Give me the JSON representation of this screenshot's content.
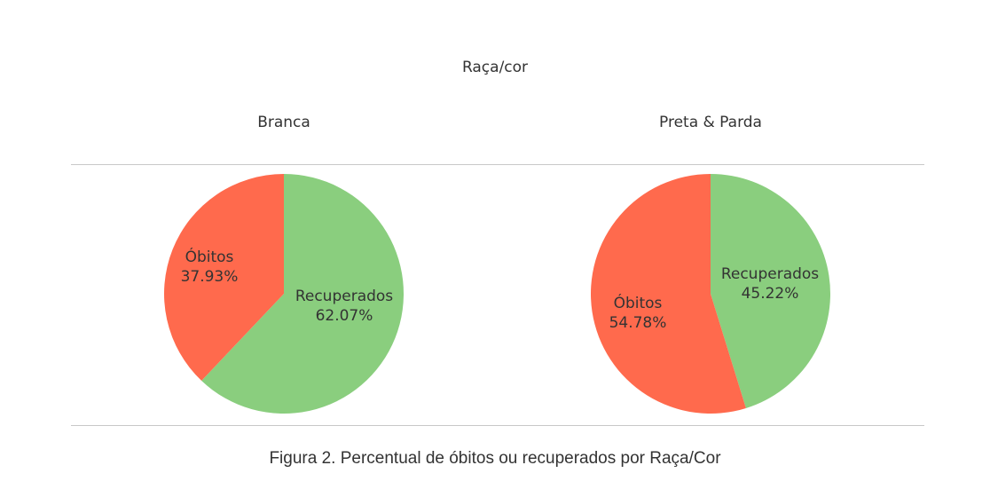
{
  "chart_data": {
    "type": "pie",
    "title": "Raça/cor",
    "colors": {
      "Recuperados": "#8ACE7E",
      "Óbitos": "#FF6A4D"
    },
    "panels": [
      {
        "name": "Branca",
        "slices": [
          {
            "label": "Recuperados",
            "value": 62.07,
            "value_text": "62.07%"
          },
          {
            "label": "Óbitos",
            "value": 37.93,
            "value_text": "37.93%"
          }
        ]
      },
      {
        "name": "Preta & Parda",
        "slices": [
          {
            "label": "Recuperados",
            "value": 45.22,
            "value_text": "45.22%"
          },
          {
            "label": "Óbitos",
            "value": 54.78,
            "value_text": "54.78%"
          }
        ]
      }
    ]
  },
  "caption": "Figura 2. Percentual de óbitos ou recuperados por Raça/Cor"
}
